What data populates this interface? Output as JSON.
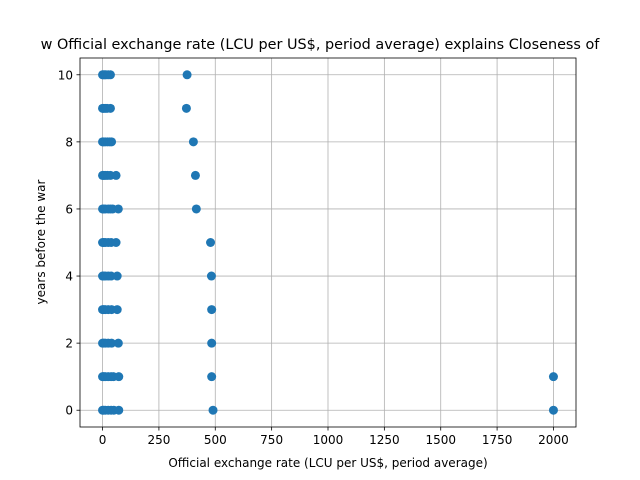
{
  "chart_data": {
    "type": "scatter",
    "title": "w Official exchange rate (LCU per US$, period average) explains Closeness of",
    "xlabel": "Official exchange rate (LCU per US$, period average)",
    "ylabel": "years before the war",
    "xlim": [
      -100,
      2100
    ],
    "ylim": [
      -0.5,
      10.5
    ],
    "xticks": [
      0,
      250,
      500,
      750,
      1000,
      1250,
      1500,
      1750,
      2000
    ],
    "yticks": [
      0,
      2,
      4,
      6,
      8,
      10
    ],
    "grid": true,
    "color": "#1f77b4",
    "points": [
      {
        "x": 0,
        "y": 10
      },
      {
        "x": 5,
        "y": 10
      },
      {
        "x": 10,
        "y": 10
      },
      {
        "x": 15,
        "y": 10
      },
      {
        "x": 25,
        "y": 10
      },
      {
        "x": 35,
        "y": 10
      },
      {
        "x": 375,
        "y": 10
      },
      {
        "x": 0,
        "y": 9
      },
      {
        "x": 5,
        "y": 9
      },
      {
        "x": 12,
        "y": 9
      },
      {
        "x": 20,
        "y": 9
      },
      {
        "x": 35,
        "y": 9
      },
      {
        "x": 372,
        "y": 9
      },
      {
        "x": 0,
        "y": 8
      },
      {
        "x": 5,
        "y": 8
      },
      {
        "x": 12,
        "y": 8
      },
      {
        "x": 22,
        "y": 8
      },
      {
        "x": 32,
        "y": 8
      },
      {
        "x": 40,
        "y": 8
      },
      {
        "x": 403,
        "y": 8
      },
      {
        "x": 0,
        "y": 7
      },
      {
        "x": 5,
        "y": 7
      },
      {
        "x": 12,
        "y": 7
      },
      {
        "x": 22,
        "y": 7
      },
      {
        "x": 35,
        "y": 7
      },
      {
        "x": 60,
        "y": 7
      },
      {
        "x": 412,
        "y": 7
      },
      {
        "x": 0,
        "y": 6
      },
      {
        "x": 5,
        "y": 6
      },
      {
        "x": 12,
        "y": 6
      },
      {
        "x": 25,
        "y": 6
      },
      {
        "x": 35,
        "y": 6
      },
      {
        "x": 45,
        "y": 6
      },
      {
        "x": 70,
        "y": 6
      },
      {
        "x": 416,
        "y": 6
      },
      {
        "x": 0,
        "y": 5
      },
      {
        "x": 5,
        "y": 5
      },
      {
        "x": 12,
        "y": 5
      },
      {
        "x": 25,
        "y": 5
      },
      {
        "x": 38,
        "y": 5
      },
      {
        "x": 60,
        "y": 5
      },
      {
        "x": 479,
        "y": 5
      },
      {
        "x": 0,
        "y": 4
      },
      {
        "x": 5,
        "y": 4
      },
      {
        "x": 12,
        "y": 4
      },
      {
        "x": 25,
        "y": 4
      },
      {
        "x": 38,
        "y": 4
      },
      {
        "x": 65,
        "y": 4
      },
      {
        "x": 483,
        "y": 4
      },
      {
        "x": 0,
        "y": 3
      },
      {
        "x": 5,
        "y": 3
      },
      {
        "x": 12,
        "y": 3
      },
      {
        "x": 25,
        "y": 3
      },
      {
        "x": 40,
        "y": 3
      },
      {
        "x": 65,
        "y": 3
      },
      {
        "x": 484,
        "y": 3
      },
      {
        "x": 0,
        "y": 2
      },
      {
        "x": 5,
        "y": 2
      },
      {
        "x": 12,
        "y": 2
      },
      {
        "x": 25,
        "y": 2
      },
      {
        "x": 40,
        "y": 2
      },
      {
        "x": 70,
        "y": 2
      },
      {
        "x": 484,
        "y": 2
      },
      {
        "x": 0,
        "y": 1
      },
      {
        "x": 5,
        "y": 1
      },
      {
        "x": 12,
        "y": 1
      },
      {
        "x": 25,
        "y": 1
      },
      {
        "x": 38,
        "y": 1
      },
      {
        "x": 48,
        "y": 1
      },
      {
        "x": 72,
        "y": 1
      },
      {
        "x": 484,
        "y": 1
      },
      {
        "x": 2000,
        "y": 1
      },
      {
        "x": 0,
        "y": 0
      },
      {
        "x": 5,
        "y": 0
      },
      {
        "x": 12,
        "y": 0
      },
      {
        "x": 25,
        "y": 0
      },
      {
        "x": 38,
        "y": 0
      },
      {
        "x": 50,
        "y": 0
      },
      {
        "x": 72,
        "y": 0
      },
      {
        "x": 490,
        "y": 0
      },
      {
        "x": 2000,
        "y": 0
      }
    ]
  }
}
